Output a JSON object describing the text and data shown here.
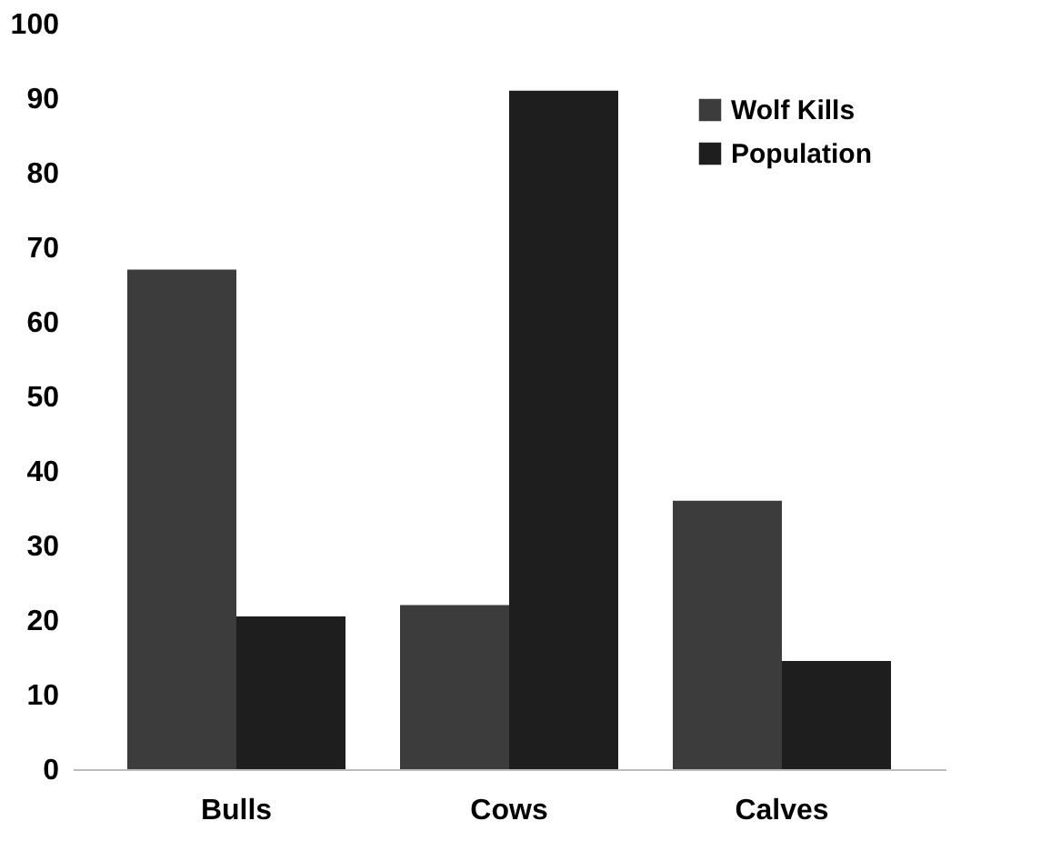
{
  "chart_data": {
    "type": "bar",
    "categories": [
      "Bulls",
      "Cows",
      "Calves"
    ],
    "series": [
      {
        "name": "Wolf Kills",
        "color": "#3c3c3c",
        "values": [
          67,
          22,
          36
        ]
      },
      {
        "name": "Population",
        "color": "#1e1e1e",
        "values": [
          20.5,
          91,
          14.5
        ]
      }
    ],
    "ylim": [
      0,
      100
    ],
    "yticks": [
      0,
      10,
      20,
      30,
      40,
      50,
      60,
      70,
      80,
      90,
      100
    ],
    "grid": false,
    "legend": "top right"
  }
}
